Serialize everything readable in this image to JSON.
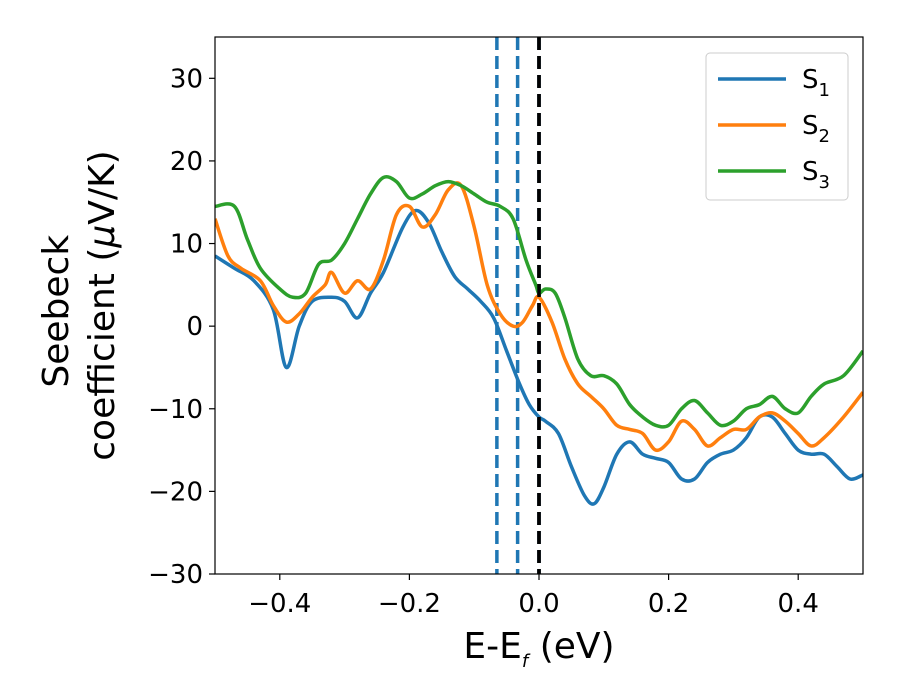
{
  "chart_data": {
    "type": "line",
    "xlabel": {
      "main": "E-E",
      "sub": "f",
      "unit": " (eV)"
    },
    "ylabel": {
      "line1": "Seebeck",
      "line2_text": "coefficient  (",
      "line2_mu": "μ",
      "line2_unit": "V/K)"
    },
    "xlim": [
      -0.5,
      0.5
    ],
    "ylim": [
      -30,
      35
    ],
    "xticks": [
      -0.4,
      -0.2,
      0.0,
      0.2,
      0.4
    ],
    "xtick_labels": [
      "−0.4",
      "−0.2",
      "0.0",
      "0.2",
      "0.4"
    ],
    "yticks": [
      -30,
      -20,
      -10,
      0,
      10,
      20,
      30
    ],
    "ytick_labels": [
      "−30",
      "−20",
      "−10",
      "0",
      "10",
      "20",
      "30"
    ],
    "grid": false,
    "legend_position": "top-right",
    "vlines": [
      {
        "x": -0.065,
        "style": "dashed",
        "color": "#1f77b4"
      },
      {
        "x": -0.033,
        "style": "dashed",
        "color": "#1f77b4"
      },
      {
        "x": 0.0,
        "style": "dashed",
        "color": "#1f77b4"
      },
      {
        "x": 0.0,
        "style": "dashed",
        "color": "#000000"
      }
    ],
    "series": [
      {
        "name": "S",
        "sub": "1",
        "color": "#1f77b4",
        "points": [
          [
            -0.5,
            8.5
          ],
          [
            -0.47,
            7.0
          ],
          [
            -0.44,
            5.5
          ],
          [
            -0.41,
            2.0
          ],
          [
            -0.39,
            -5.0
          ],
          [
            -0.37,
            0.0
          ],
          [
            -0.35,
            3.0
          ],
          [
            -0.32,
            3.5
          ],
          [
            -0.3,
            3.0
          ],
          [
            -0.28,
            1.0
          ],
          [
            -0.26,
            4.0
          ],
          [
            -0.24,
            6.5
          ],
          [
            -0.21,
            12.0
          ],
          [
            -0.19,
            14.0
          ],
          [
            -0.17,
            12.5
          ],
          [
            -0.15,
            9.0
          ],
          [
            -0.13,
            6.0
          ],
          [
            -0.11,
            4.5
          ],
          [
            -0.09,
            3.0
          ],
          [
            -0.07,
            1.0
          ],
          [
            -0.05,
            -3.0
          ],
          [
            -0.03,
            -7.0
          ],
          [
            -0.015,
            -9.5
          ],
          [
            0.0,
            -11.0
          ],
          [
            0.01,
            -11.5
          ],
          [
            0.03,
            -13.0
          ],
          [
            0.05,
            -17.0
          ],
          [
            0.07,
            -20.5
          ],
          [
            0.085,
            -21.5
          ],
          [
            0.1,
            -19.5
          ],
          [
            0.12,
            -15.5
          ],
          [
            0.14,
            -14.0
          ],
          [
            0.16,
            -15.5
          ],
          [
            0.18,
            -16.0
          ],
          [
            0.2,
            -16.5
          ],
          [
            0.22,
            -18.5
          ],
          [
            0.24,
            -18.5
          ],
          [
            0.26,
            -16.5
          ],
          [
            0.28,
            -15.5
          ],
          [
            0.3,
            -15.0
          ],
          [
            0.32,
            -13.5
          ],
          [
            0.34,
            -11.0
          ],
          [
            0.36,
            -11.0
          ],
          [
            0.38,
            -13.0
          ],
          [
            0.4,
            -15.0
          ],
          [
            0.42,
            -15.5
          ],
          [
            0.44,
            -15.5
          ],
          [
            0.46,
            -17.0
          ],
          [
            0.48,
            -18.5
          ],
          [
            0.5,
            -18.0
          ]
        ]
      },
      {
        "name": "S",
        "sub": "2",
        "color": "#ff7f0e",
        "points": [
          [
            -0.5,
            13.0
          ],
          [
            -0.48,
            8.5
          ],
          [
            -0.46,
            7.0
          ],
          [
            -0.43,
            5.5
          ],
          [
            -0.41,
            2.5
          ],
          [
            -0.39,
            0.5
          ],
          [
            -0.37,
            1.5
          ],
          [
            -0.35,
            3.5
          ],
          [
            -0.33,
            5.0
          ],
          [
            -0.32,
            6.5
          ],
          [
            -0.3,
            4.0
          ],
          [
            -0.28,
            5.5
          ],
          [
            -0.26,
            4.5
          ],
          [
            -0.24,
            8.0
          ],
          [
            -0.22,
            13.5
          ],
          [
            -0.2,
            14.5
          ],
          [
            -0.18,
            12.0
          ],
          [
            -0.16,
            13.5
          ],
          [
            -0.14,
            16.5
          ],
          [
            -0.12,
            17.0
          ],
          [
            -0.1,
            12.0
          ],
          [
            -0.08,
            5.0
          ],
          [
            -0.06,
            1.5
          ],
          [
            -0.04,
            0.0
          ],
          [
            -0.025,
            0.5
          ],
          [
            -0.01,
            2.5
          ],
          [
            0.0,
            3.5
          ],
          [
            0.02,
            0.5
          ],
          [
            0.04,
            -4.0
          ],
          [
            0.06,
            -7.0
          ],
          [
            0.08,
            -8.5
          ],
          [
            0.1,
            -10.0
          ],
          [
            0.12,
            -12.0
          ],
          [
            0.14,
            -12.5
          ],
          [
            0.16,
            -13.0
          ],
          [
            0.18,
            -15.0
          ],
          [
            0.2,
            -14.0
          ],
          [
            0.22,
            -11.5
          ],
          [
            0.24,
            -12.5
          ],
          [
            0.26,
            -14.5
          ],
          [
            0.28,
            -13.5
          ],
          [
            0.3,
            -12.5
          ],
          [
            0.32,
            -12.5
          ],
          [
            0.34,
            -11.0
          ],
          [
            0.36,
            -10.5
          ],
          [
            0.38,
            -11.5
          ],
          [
            0.4,
            -13.0
          ],
          [
            0.42,
            -14.5
          ],
          [
            0.44,
            -13.5
          ],
          [
            0.47,
            -11.0
          ],
          [
            0.5,
            -8.0
          ]
        ]
      },
      {
        "name": "S",
        "sub": "3",
        "color": "#2ca02c",
        "points": [
          [
            -0.5,
            14.5
          ],
          [
            -0.47,
            14.5
          ],
          [
            -0.45,
            10.5
          ],
          [
            -0.43,
            7.0
          ],
          [
            -0.4,
            4.5
          ],
          [
            -0.38,
            3.5
          ],
          [
            -0.36,
            4.0
          ],
          [
            -0.34,
            7.5
          ],
          [
            -0.32,
            8.0
          ],
          [
            -0.3,
            10.0
          ],
          [
            -0.28,
            13.0
          ],
          [
            -0.26,
            16.0
          ],
          [
            -0.24,
            18.0
          ],
          [
            -0.22,
            17.5
          ],
          [
            -0.2,
            15.5
          ],
          [
            -0.18,
            16.0
          ],
          [
            -0.16,
            17.0
          ],
          [
            -0.14,
            17.5
          ],
          [
            -0.12,
            17.0
          ],
          [
            -0.1,
            16.0
          ],
          [
            -0.08,
            15.0
          ],
          [
            -0.06,
            14.5
          ],
          [
            -0.04,
            13.0
          ],
          [
            -0.02,
            8.0
          ],
          [
            -0.005,
            5.0
          ],
          [
            0.0,
            4.0
          ],
          [
            0.01,
            4.5
          ],
          [
            0.025,
            4.0
          ],
          [
            0.04,
            1.0
          ],
          [
            0.06,
            -4.0
          ],
          [
            0.08,
            -6.0
          ],
          [
            0.1,
            -6.0
          ],
          [
            0.12,
            -7.0
          ],
          [
            0.14,
            -9.5
          ],
          [
            0.16,
            -11.0
          ],
          [
            0.18,
            -12.0
          ],
          [
            0.2,
            -12.0
          ],
          [
            0.22,
            -10.0
          ],
          [
            0.24,
            -9.0
          ],
          [
            0.26,
            -10.5
          ],
          [
            0.28,
            -12.0
          ],
          [
            0.3,
            -11.5
          ],
          [
            0.32,
            -10.0
          ],
          [
            0.34,
            -9.5
          ],
          [
            0.36,
            -8.5
          ],
          [
            0.38,
            -10.0
          ],
          [
            0.4,
            -10.5
          ],
          [
            0.42,
            -8.5
          ],
          [
            0.44,
            -7.0
          ],
          [
            0.47,
            -6.0
          ],
          [
            0.5,
            -3.0
          ]
        ]
      }
    ]
  }
}
